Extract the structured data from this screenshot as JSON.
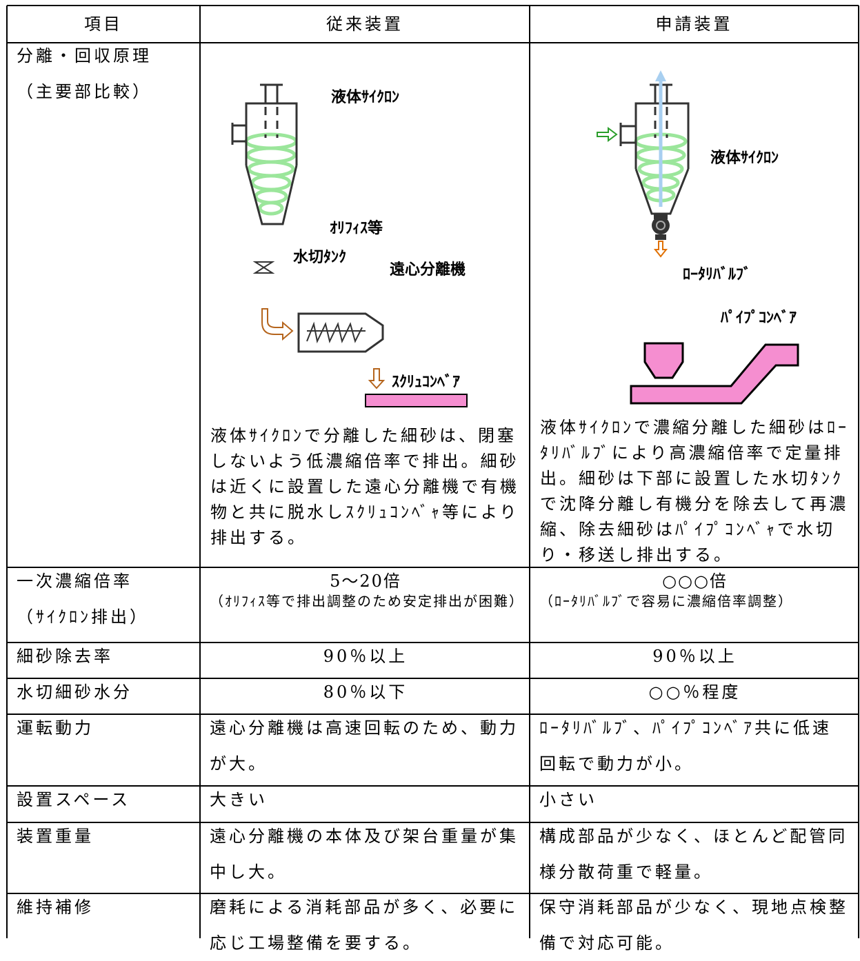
{
  "table": {
    "header": [
      "項目",
      "従来装置",
      "申請装置"
    ],
    "principle": {
      "label": [
        "分離・回収原理",
        "（主要部比較）"
      ],
      "conventional": {
        "cyclone": "液体ｻｲｸﾛﾝ",
        "orifice": "ｵﾘﾌｨｽ等",
        "tank": "水切ﾀﾝｸ",
        "centrifuge": "遠心分離機",
        "screw": "ｽｸﾘｭｺﾝﾍﾞｱ",
        "description": "液体ｻｲｸﾛﾝで分離した細砂は、閉塞しないよう低濃縮倍率で排出。細砂は近くに設置した遠心分離機で有機物と共に脱水しｽｸﾘｭｺﾝﾍﾞｬ等により排出する。"
      },
      "proposed": {
        "cyclone": "液体ｻｲｸﾛﾝ",
        "valve": "ﾛｰﾀﾘﾊﾞﾙﾌﾞ",
        "pipe": "ﾊﾟｲﾌﾟｺﾝﾍﾞｱ",
        "description": "液体ｻｲｸﾛﾝで濃縮分離した細砂はﾛｰﾀﾘﾊﾞﾙﾌﾞにより高濃縮倍率で定量排出。細砂は下部に設置した水切ﾀﾝｸで沈降分離し有機分を除去して再濃縮、除去細砂はﾊﾟｲﾌﾟｺﾝﾍﾞｬで水切り・移送し排出する。"
      }
    },
    "rows": [
      {
        "label": [
          "一次濃縮倍率",
          "（ｻｲｸﾛﾝ排出）"
        ],
        "conventional": [
          "5～20倍",
          "（ｵﾘﾌｨｽ等で排出調整のため安定排出が困難）"
        ],
        "proposed": [
          "○○○倍",
          "（ﾛｰﾀﾘﾊﾞﾙﾌﾞで容易に濃縮倍率調整）"
        ]
      },
      {
        "label": [
          "細砂除去率"
        ],
        "conventional": [
          "90％以上"
        ],
        "proposed": [
          "90％以上"
        ]
      },
      {
        "label": [
          "水切細砂水分"
        ],
        "conventional": [
          "80％以下"
        ],
        "proposed": [
          "○○％程度"
        ]
      },
      {
        "label": [
          "運転動力"
        ],
        "conventional": [
          "遠心分離機は高速回転のため、動力が大。"
        ],
        "proposed": [
          "ﾛｰﾀﾘﾊﾞﾙﾌﾞ、ﾊﾟｲﾌﾟｺﾝﾍﾞｱ共に低速回転で動力が小。"
        ]
      },
      {
        "label": [
          "設置スペース"
        ],
        "conventional": [
          "大きい"
        ],
        "proposed": [
          "小さい"
        ]
      },
      {
        "label": [
          "装置重量"
        ],
        "conventional": [
          "遠心分離機の本体及び架台重量が集中し大。"
        ],
        "proposed": [
          "構成部品が少なく、ほとんど配管同様分散荷重で軽量。"
        ]
      },
      {
        "label": [
          "維持補修"
        ],
        "conventional": [
          "磨耗による消耗部品が多く、必要に応じ工場整備を要する。"
        ],
        "proposed": [
          "保守消耗部品が少なく、現地点検整備で対応可能。"
        ]
      }
    ]
  }
}
